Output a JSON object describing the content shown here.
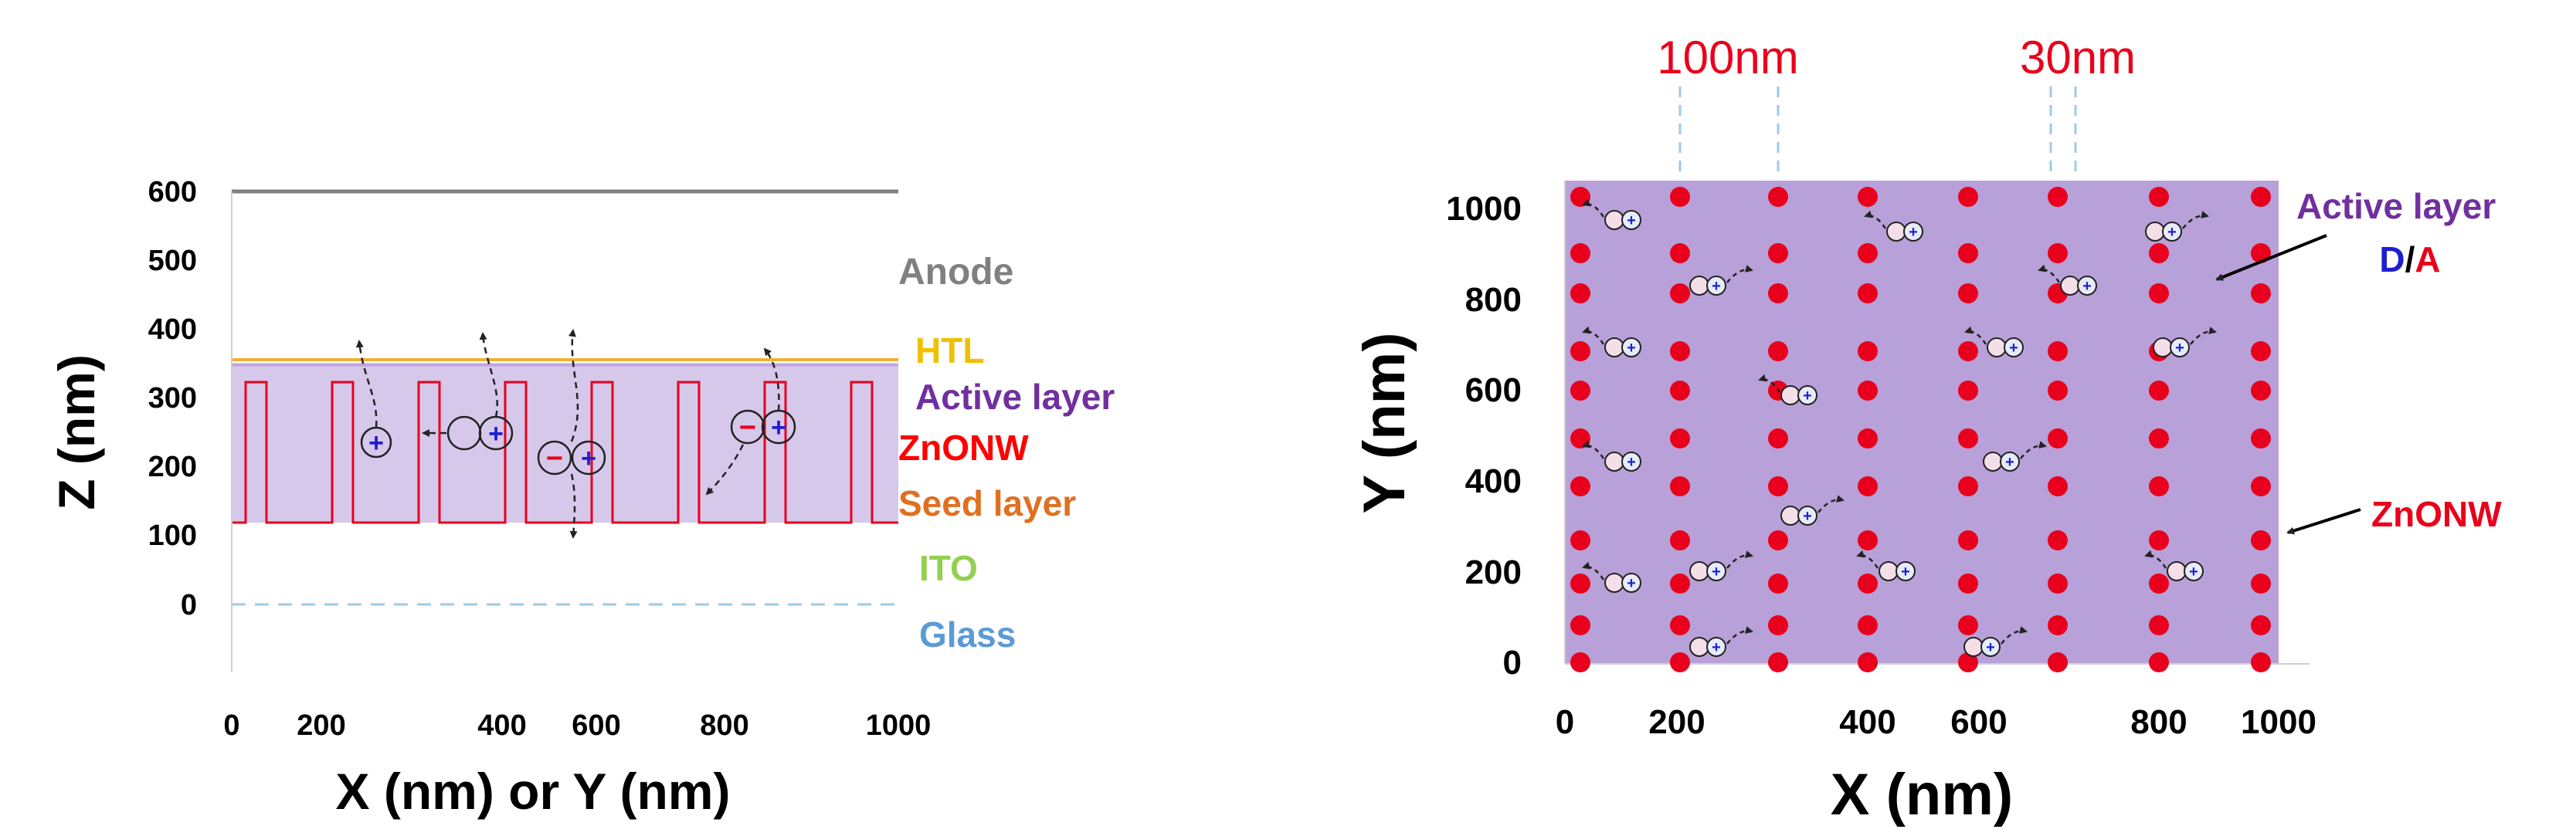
{
  "left_panel": {
    "y_axis_title": "Z (nm)",
    "x_axis_title": "X (nm) or Y (nm)",
    "y_ticks": [
      "0",
      "100",
      "200",
      "300",
      "400",
      "500",
      "600"
    ],
    "x_ticks": [
      "0",
      "200",
      "400",
      "600",
      "800",
      "1000"
    ],
    "layers": [
      {
        "label": "Anode",
        "color": "#808080"
      },
      {
        "label": "HTL",
        "color": "#f0c000"
      },
      {
        "label": "Active layer",
        "color": "#7030a0"
      },
      {
        "label": "ZnONW",
        "color": "#ff0000"
      },
      {
        "label": "Seed layer",
        "color": "#e07020"
      },
      {
        "label": "ITO",
        "color": "#92d050"
      },
      {
        "label": "Glass",
        "color": "#5b9bd5"
      }
    ],
    "charge_signs": {
      "hole": "+",
      "electron": "−"
    }
  },
  "right_panel": {
    "y_axis_title": "Y (nm)",
    "x_axis_title": "X (nm)",
    "y_ticks": [
      "0",
      "200",
      "400",
      "600",
      "800",
      "1000"
    ],
    "x_ticks": [
      "0",
      "200",
      "400",
      "600",
      "800",
      "1000"
    ],
    "spacing_labels": [
      "100nm",
      "30nm"
    ],
    "active_layer_label": "Active layer",
    "donor_label": "D",
    "slash": "/",
    "acceptor_label": "A",
    "zno_label": "ZnONW"
  },
  "colors": {
    "active_layer_fill": "#c8b8e0",
    "active_layer_fill_right": "#b8a0d8",
    "nanowire": "#e8001c",
    "donor_blue": "#1f1fd0",
    "guide_blue": "#9ecae8"
  }
}
